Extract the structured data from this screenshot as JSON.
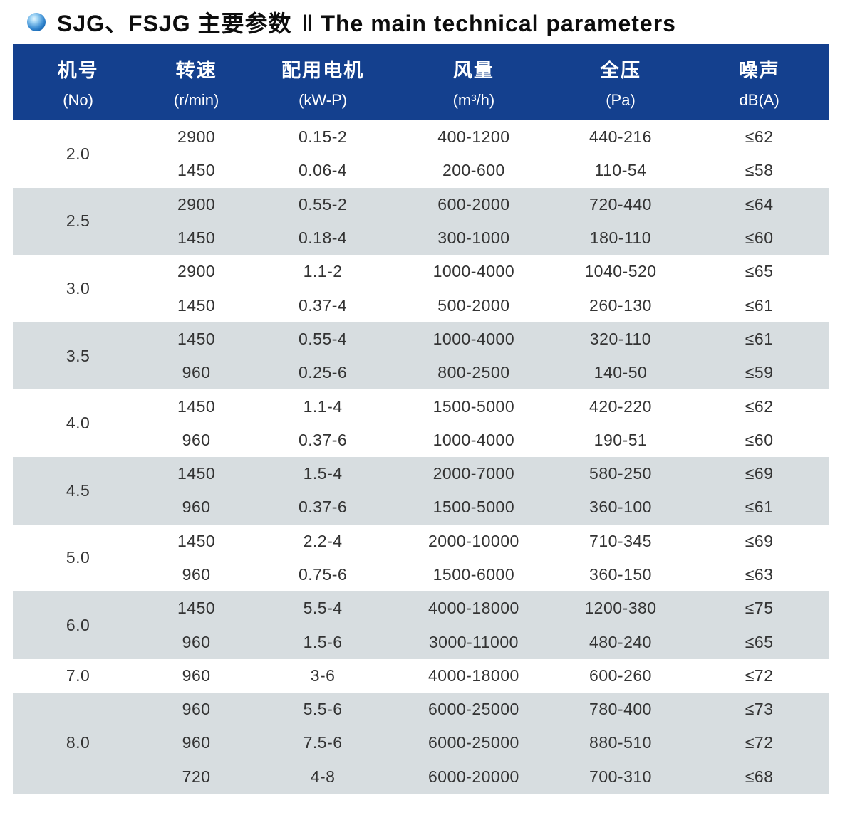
{
  "title": {
    "chinese": "SJG、FSJG 主要参数",
    "separator": "‖",
    "english": "The main technical parameters"
  },
  "colors": {
    "header_bg": "#14408e",
    "header_text": "#ffffff",
    "shaded_row_bg": "#d7dde0",
    "body_text": "#333333",
    "bullet_blue": "#0c5caa"
  },
  "table": {
    "columns": [
      {
        "zh": "机号",
        "sub": "(No)"
      },
      {
        "zh": "转速",
        "sub": "(r/min)"
      },
      {
        "zh": "配用电机",
        "sub": "(kW-P)"
      },
      {
        "zh": "风量",
        "sub": "(m³/h)"
      },
      {
        "zh": "全压",
        "sub": "(Pa)"
      },
      {
        "zh": "噪声",
        "sub": "dB(A)"
      }
    ],
    "groups": [
      {
        "no": "2.0",
        "shaded": false,
        "rows": [
          [
            "2900",
            "0.15-2",
            "400-1200",
            "440-216",
            "≤62"
          ],
          [
            "1450",
            "0.06-4",
            "200-600",
            "110-54",
            "≤58"
          ]
        ]
      },
      {
        "no": "2.5",
        "shaded": true,
        "rows": [
          [
            "2900",
            "0.55-2",
            "600-2000",
            "720-440",
            "≤64"
          ],
          [
            "1450",
            "0.18-4",
            "300-1000",
            "180-110",
            "≤60"
          ]
        ]
      },
      {
        "no": "3.0",
        "shaded": false,
        "rows": [
          [
            "2900",
            "1.1-2",
            "1000-4000",
            "1040-520",
            "≤65"
          ],
          [
            "1450",
            "0.37-4",
            "500-2000",
            "260-130",
            "≤61"
          ]
        ]
      },
      {
        "no": "3.5",
        "shaded": true,
        "rows": [
          [
            "1450",
            "0.55-4",
            "1000-4000",
            "320-110",
            "≤61"
          ],
          [
            "960",
            "0.25-6",
            "800-2500",
            "140-50",
            "≤59"
          ]
        ]
      },
      {
        "no": "4.0",
        "shaded": false,
        "rows": [
          [
            "1450",
            "1.1-4",
            "1500-5000",
            "420-220",
            "≤62"
          ],
          [
            "960",
            "0.37-6",
            "1000-4000",
            "190-51",
            "≤60"
          ]
        ]
      },
      {
        "no": "4.5",
        "shaded": true,
        "rows": [
          [
            "1450",
            "1.5-4",
            "2000-7000",
            "580-250",
            "≤69"
          ],
          [
            "960",
            "0.37-6",
            "1500-5000",
            "360-100",
            "≤61"
          ]
        ]
      },
      {
        "no": "5.0",
        "shaded": false,
        "rows": [
          [
            "1450",
            "2.2-4",
            "2000-10000",
            "710-345",
            "≤69"
          ],
          [
            "960",
            "0.75-6",
            "1500-6000",
            "360-150",
            "≤63"
          ]
        ]
      },
      {
        "no": "6.0",
        "shaded": true,
        "rows": [
          [
            "1450",
            "5.5-4",
            "4000-18000",
            "1200-380",
            "≤75"
          ],
          [
            "960",
            "1.5-6",
            "3000-11000",
            "480-240",
            "≤65"
          ]
        ]
      },
      {
        "no": "7.0",
        "shaded": false,
        "rows": [
          [
            "960",
            "3-6",
            "4000-18000",
            "600-260",
            "≤72"
          ]
        ]
      },
      {
        "no": "8.0",
        "shaded": true,
        "rows": [
          [
            "960",
            "5.5-6",
            "6000-25000",
            "780-400",
            "≤73"
          ],
          [
            "960",
            "7.5-6",
            "6000-25000",
            "880-510",
            "≤72"
          ],
          [
            "720",
            "4-8",
            "6000-20000",
            "700-310",
            "≤68"
          ]
        ]
      }
    ]
  }
}
